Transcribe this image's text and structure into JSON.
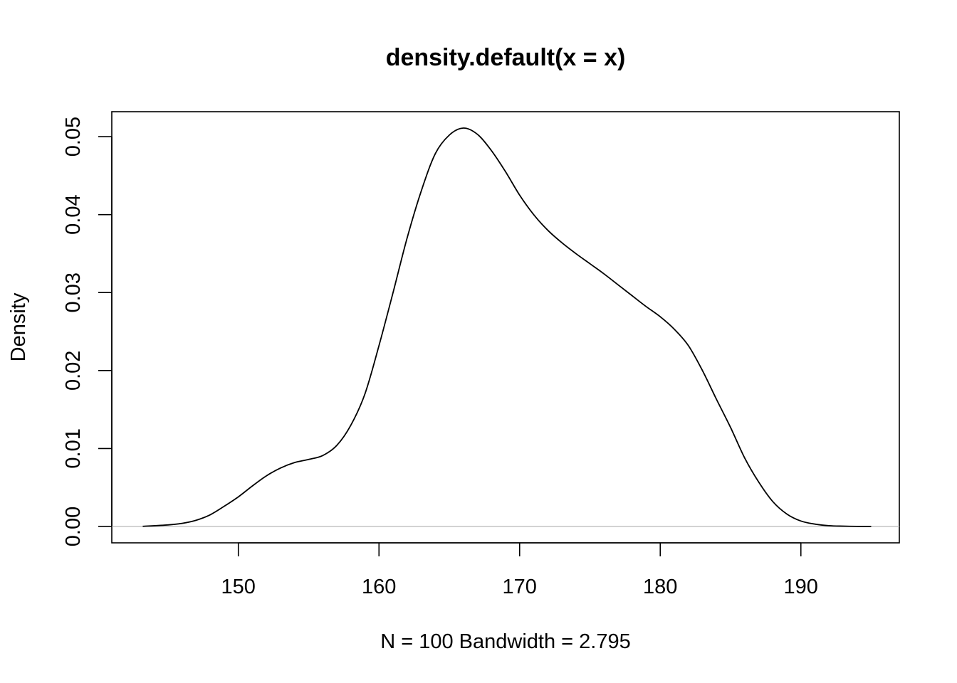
{
  "chart_data": {
    "type": "line",
    "title": "density.default(x = x)",
    "xlabel": "N = 100   Bandwidth = 2.795",
    "ylabel": "Density",
    "xlim": [
      141,
      197
    ],
    "ylim": [
      -0.0021,
      0.0532
    ],
    "x_ticks": [
      150,
      160,
      170,
      180,
      190
    ],
    "x_tick_labels": [
      "150",
      "160",
      "170",
      "180",
      "190"
    ],
    "y_ticks": [
      0.0,
      0.01,
      0.02,
      0.03,
      0.04,
      0.05
    ],
    "y_tick_labels": [
      "0.00",
      "0.01",
      "0.02",
      "0.03",
      "0.04",
      "0.05"
    ],
    "grid": false,
    "baseline": 0,
    "baseline_color": "#bebebe",
    "line_color": "#000000",
    "series": [
      {
        "x": [
          143.2,
          145,
          146,
          147,
          148,
          149,
          150,
          151,
          152,
          153,
          154,
          155,
          156,
          157,
          158,
          159,
          160,
          161,
          162,
          163,
          164,
          165,
          166,
          167,
          168,
          169,
          170,
          171,
          172,
          173,
          174,
          175,
          176,
          177,
          178,
          179,
          180,
          181,
          182,
          183,
          184,
          185,
          186,
          187,
          188,
          189,
          190,
          191,
          192,
          193,
          194,
          195
        ],
        "y": [
          2e-05,
          0.0002,
          0.0004,
          0.0008,
          0.0015,
          0.0026,
          0.0038,
          0.0052,
          0.0065,
          0.0075,
          0.0082,
          0.0086,
          0.0091,
          0.0104,
          0.013,
          0.017,
          0.0232,
          0.03,
          0.037,
          0.043,
          0.0478,
          0.0502,
          0.0511,
          0.0503,
          0.0482,
          0.0455,
          0.0425,
          0.04,
          0.038,
          0.0364,
          0.035,
          0.0337,
          0.0324,
          0.031,
          0.0296,
          0.0282,
          0.0269,
          0.0253,
          0.0232,
          0.02,
          0.0163,
          0.0127,
          0.0088,
          0.0057,
          0.0032,
          0.0016,
          0.0007,
          0.0003,
          0.0001,
          4e-05,
          1e-05,
          0.0
        ]
      }
    ]
  }
}
